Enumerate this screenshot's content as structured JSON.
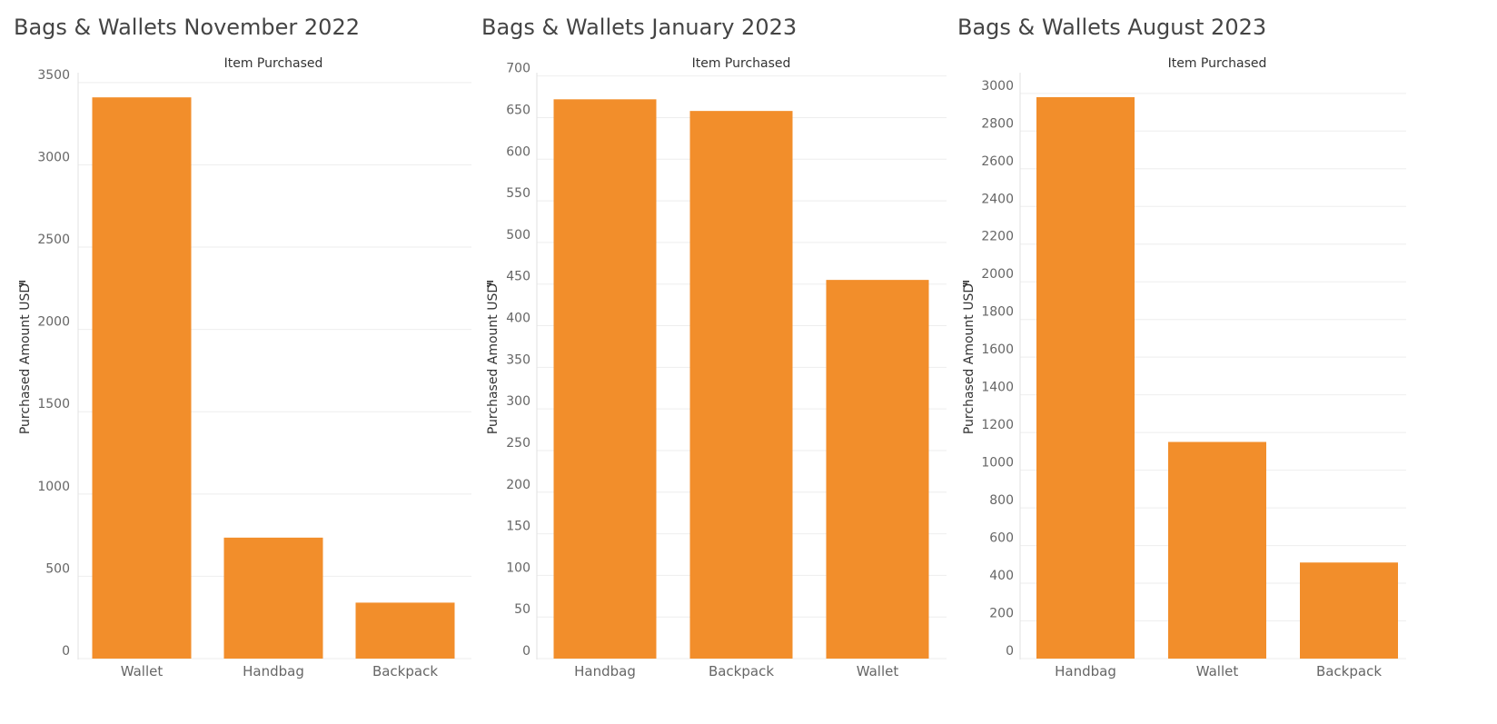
{
  "charts": [
    {
      "title": "Bags & Wallets November 2022",
      "column_header": "Item Purchased",
      "ylabel": "Purchased Amount USD",
      "bar_color": "#f28e2b",
      "ticks": [
        0,
        500,
        1000,
        1500,
        2000,
        2500,
        3000,
        3500
      ]
    },
    {
      "title": "Bags & Wallets January 2023",
      "column_header": "Item Purchased",
      "ylabel": "Purchased Amount USD",
      "bar_color": "#f28e2b",
      "ticks": [
        0,
        50,
        100,
        150,
        200,
        250,
        300,
        350,
        400,
        450,
        500,
        550,
        600,
        650,
        700
      ]
    },
    {
      "title": "Bags & Wallets August 2023",
      "column_header": "Item Purchased",
      "ylabel": "Purchased Amount USD",
      "bar_color": "#f28e2b",
      "ticks": [
        0,
        200,
        400,
        600,
        800,
        1000,
        1200,
        1400,
        1600,
        1800,
        2000,
        2200,
        2400,
        2600,
        2800,
        3000
      ]
    }
  ],
  "chart_data": [
    {
      "type": "bar",
      "title": "Bags & Wallets November 2022",
      "xlabel": "Item Purchased",
      "ylabel": "Purchased Amount USD",
      "categories": [
        "Wallet",
        "Handbag",
        "Backpack"
      ],
      "values": [
        3410,
        735,
        340
      ],
      "ylim": [
        0,
        3560
      ],
      "grid": true
    },
    {
      "type": "bar",
      "title": "Bags & Wallets January 2023",
      "xlabel": "Item Purchased",
      "ylabel": "Purchased Amount USD",
      "categories": [
        "Handbag",
        "Backpack",
        "Wallet"
      ],
      "values": [
        672,
        658,
        455
      ],
      "ylim": [
        0,
        704
      ],
      "grid": true
    },
    {
      "type": "bar",
      "title": "Bags & Wallets August 2023",
      "xlabel": "Item Purchased",
      "ylabel": "Purchased Amount USD",
      "categories": [
        "Handbag",
        "Wallet",
        "Backpack"
      ],
      "values": [
        2980,
        1150,
        510
      ],
      "ylim": [
        0,
        3110
      ],
      "grid": true
    }
  ]
}
